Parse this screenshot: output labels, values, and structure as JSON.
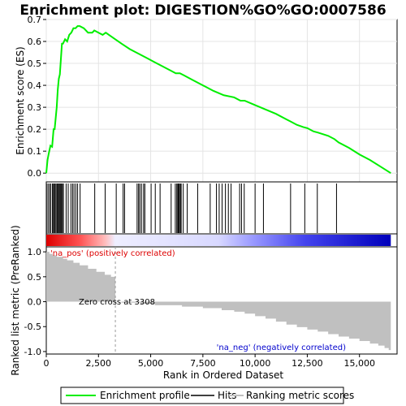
{
  "chart_data": {
    "type": "line",
    "title": "Enrichment plot: DIGESTION%GO%GO:0007586",
    "top_panel": {
      "ylabel": "Enrichment score (ES)",
      "ylim": [
        -0.04,
        0.7
      ],
      "yticks": [
        0.0,
        0.1,
        0.2,
        0.3,
        0.4,
        0.5,
        0.6,
        0.7
      ],
      "grid": true,
      "series": [
        {
          "name": "Enrichment profile",
          "color": "#00ee00",
          "x": [
            0,
            60,
            120,
            200,
            280,
            350,
            400,
            450,
            500,
            550,
            600,
            650,
            700,
            750,
            800,
            900,
            1000,
            1100,
            1200,
            1300,
            1400,
            1500,
            1600,
            1800,
            2000,
            2200,
            2300,
            2500,
            2700,
            2850,
            3000,
            3300,
            3600,
            4000,
            4400,
            4800,
            5200,
            5600,
            6000,
            6200,
            6400,
            6600,
            7000,
            7500,
            8000,
            8500,
            9000,
            9300,
            9500,
            10000,
            10500,
            11000,
            11500,
            11700,
            12000,
            12300,
            12500,
            12800,
            13000,
            13500,
            13800,
            14000,
            14500,
            15000,
            15500,
            16000,
            16500
          ],
          "values": [
            0.0,
            0.06,
            0.09,
            0.125,
            0.12,
            0.2,
            0.2,
            0.25,
            0.3,
            0.38,
            0.43,
            0.45,
            0.52,
            0.59,
            0.59,
            0.61,
            0.6,
            0.63,
            0.64,
            0.66,
            0.66,
            0.67,
            0.67,
            0.66,
            0.64,
            0.64,
            0.65,
            0.64,
            0.63,
            0.64,
            0.63,
            0.61,
            0.59,
            0.565,
            0.545,
            0.525,
            0.505,
            0.485,
            0.465,
            0.455,
            0.455,
            0.445,
            0.425,
            0.4,
            0.375,
            0.355,
            0.345,
            0.33,
            0.33,
            0.31,
            0.29,
            0.27,
            0.245,
            0.235,
            0.22,
            0.21,
            0.205,
            0.19,
            0.185,
            0.17,
            0.155,
            0.14,
            0.115,
            0.085,
            0.06,
            0.03,
            0.0
          ]
        }
      ]
    },
    "hits": {
      "name": "Hits",
      "color": "#000000",
      "x": [
        10,
        80,
        150,
        210,
        290,
        340,
        380,
        420,
        470,
        520,
        560,
        610,
        650,
        690,
        730,
        770,
        820,
        950,
        1050,
        1180,
        1260,
        1330,
        1420,
        1500,
        1620,
        2320,
        2820,
        3350,
        3680,
        3750,
        4350,
        4420,
        4480,
        4560,
        4660,
        4720,
        5020,
        5220,
        5450,
        5980,
        6180,
        6250,
        6300,
        6330,
        6370,
        6420,
        6460,
        6560,
        6750,
        7250,
        7850,
        8150,
        8280,
        8420,
        8580,
        8720,
        8850,
        9260,
        9350,
        9480,
        10000,
        10400,
        11700,
        12380,
        12980,
        13900
      ]
    },
    "ranking_bar": {
      "label_pos": "'na_pos' (positively correlated)",
      "label_neg": "'na_neg' (negatively correlated)",
      "colors": [
        "#dd0000",
        "#ff5555",
        "#ffbbbb",
        "#e8e8ff",
        "#bbbbff",
        "#5555ff",
        "#0000cc"
      ]
    },
    "bottom_panel": {
      "ylabel": "Ranked list metric (PreRanked)",
      "xlabel": "Rank in Ordered Dataset",
      "ylim": [
        -1.05,
        1.1
      ],
      "yticks": [
        -1.0,
        -0.5,
        0.0,
        0.5,
        1.0
      ],
      "zero_cross_label": "Zero cross at 3308",
      "zero_cross": 3308,
      "series": [
        {
          "name": "Ranking metric scores",
          "color": "#c0c0c0",
          "x": [
            0,
            150,
            300,
            500,
            800,
            1000,
            1300,
            1600,
            2000,
            2400,
            2800,
            3100,
            3308,
            3600,
            4500,
            5200,
            6500,
            7500,
            8400,
            9000,
            9500,
            10000,
            10500,
            11000,
            11500,
            12000,
            12500,
            13000,
            13500,
            14000,
            14500,
            15000,
            15500,
            15900,
            16200,
            16400,
            16500
          ],
          "values": [
            1.0,
            0.96,
            0.93,
            0.9,
            0.86,
            0.83,
            0.78,
            0.73,
            0.66,
            0.6,
            0.54,
            0.5,
            0.0,
            -0.02,
            -0.04,
            -0.07,
            -0.1,
            -0.13,
            -0.17,
            -0.2,
            -0.24,
            -0.29,
            -0.34,
            -0.4,
            -0.46,
            -0.51,
            -0.56,
            -0.6,
            -0.65,
            -0.7,
            -0.74,
            -0.79,
            -0.84,
            -0.88,
            -0.93,
            -0.97,
            -1.0
          ]
        }
      ]
    },
    "xlim": [
      0,
      16800
    ],
    "xticks": [
      0,
      2500,
      5000,
      7500,
      10000,
      12500,
      15000
    ],
    "xtick_labels": [
      "0",
      "2,500",
      "5,000",
      "7,500",
      "10,000",
      "12,500",
      "15,000"
    ],
    "legend": {
      "placement": "bottom",
      "items": [
        {
          "label": "Enrichment profile",
          "color": "#00ee00"
        },
        {
          "label": "Hits",
          "color": "#000000"
        },
        {
          "label": "Ranking metric scores",
          "color": "#c0c0c0"
        }
      ]
    }
  }
}
